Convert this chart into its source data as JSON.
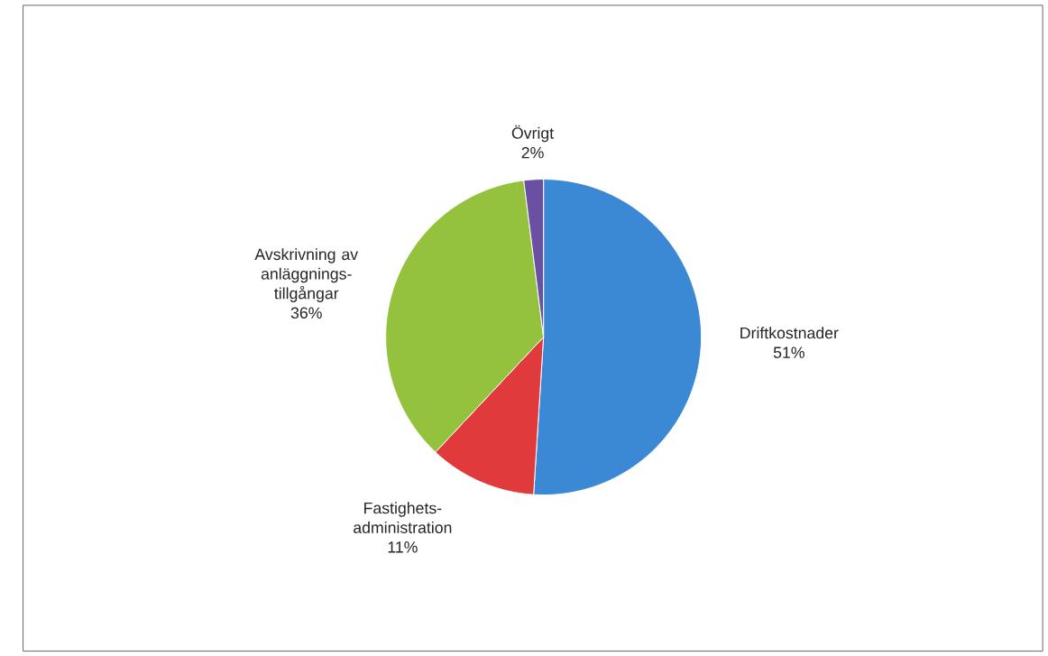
{
  "chart_data": {
    "type": "pie",
    "categories": [
      "Driftkostnader",
      "Fastighets-administration",
      "Avskrivning av anläggnings-tillgångar",
      "Övrigt"
    ],
    "values": [
      51,
      11,
      36,
      2
    ],
    "value_labels": [
      "51%",
      "11%",
      "36%",
      "2%"
    ],
    "colors": [
      "#3b88d4",
      "#e03a3c",
      "#94c23c",
      "#6a4fa2"
    ]
  }
}
